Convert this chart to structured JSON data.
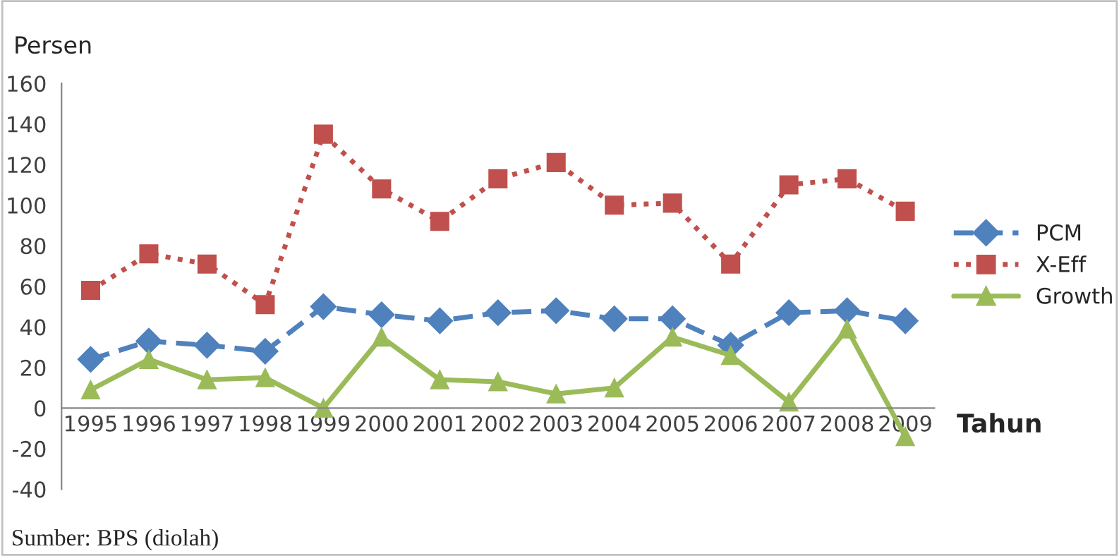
{
  "chart_data": {
    "type": "line",
    "ylabel": "Persen",
    "xlabel": "Tahun",
    "categories": [
      "1995",
      "1996",
      "1997",
      "1998",
      "1999",
      "2000",
      "2001",
      "2002",
      "2003",
      "2004",
      "2005",
      "2006",
      "2007",
      "2008",
      "2009"
    ],
    "series": [
      {
        "name": "PCM",
        "color": "#4f81bd",
        "marker": "diamond",
        "line_style": "dashed",
        "values": [
          24,
          33,
          31,
          28,
          50,
          46,
          43,
          47,
          48,
          44,
          44,
          31,
          47,
          48,
          43
        ]
      },
      {
        "name": "X-Eff",
        "color": "#c0504d",
        "marker": "square",
        "line_style": "dotted",
        "values": [
          58,
          76,
          71,
          51,
          135,
          108,
          92,
          113,
          121,
          100,
          101,
          71,
          110,
          113,
          97
        ]
      },
      {
        "name": "Growth",
        "color": "#9bbb59",
        "marker": "triangle",
        "line_style": "solid",
        "values": [
          9,
          24,
          14,
          15,
          0,
          35,
          14,
          13,
          7,
          10,
          35,
          26,
          3,
          39,
          -14
        ]
      }
    ],
    "ylim": [
      -40,
      160
    ],
    "yticks": [
      -40,
      -20,
      0,
      20,
      40,
      60,
      80,
      100,
      120,
      140,
      160
    ],
    "grid": false,
    "legend": "right",
    "annotations": [
      "Sumber: BPS (diolah)"
    ]
  }
}
